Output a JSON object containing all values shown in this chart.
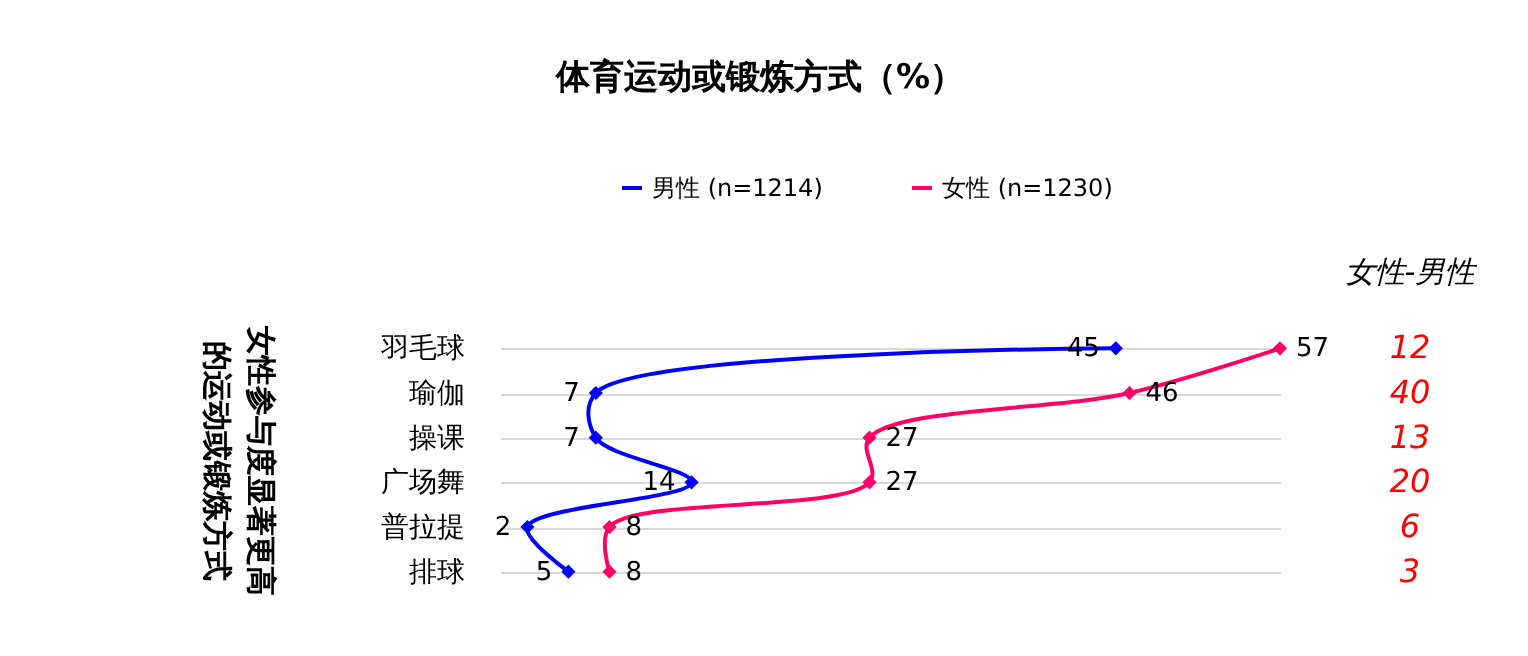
{
  "chart_data": {
    "type": "line",
    "title": "体育运动或锻炼方式（%）",
    "ylabel": "女性参与度显著更高的运动或锻炼方式",
    "orientation": "horizontal",
    "categories": [
      "羽毛球",
      "瑜伽",
      "操课",
      "广场舞",
      "普拉提",
      "排球"
    ],
    "series": [
      {
        "name": "男性 (n=1214)",
        "color": "#0000ff",
        "values": [
          45,
          7,
          7,
          14,
          2,
          5
        ]
      },
      {
        "name": "女性 (n=1230)",
        "color": "#ff0066",
        "values": [
          57,
          46,
          27,
          27,
          8,
          8
        ]
      }
    ],
    "data_labels": true,
    "marker": "diamond",
    "line_style": "solid",
    "grid": "y",
    "legend": "top",
    "annotations": [
      "女性-男性",
      "12",
      "40",
      "13",
      "20",
      "6",
      "3"
    ]
  }
}
